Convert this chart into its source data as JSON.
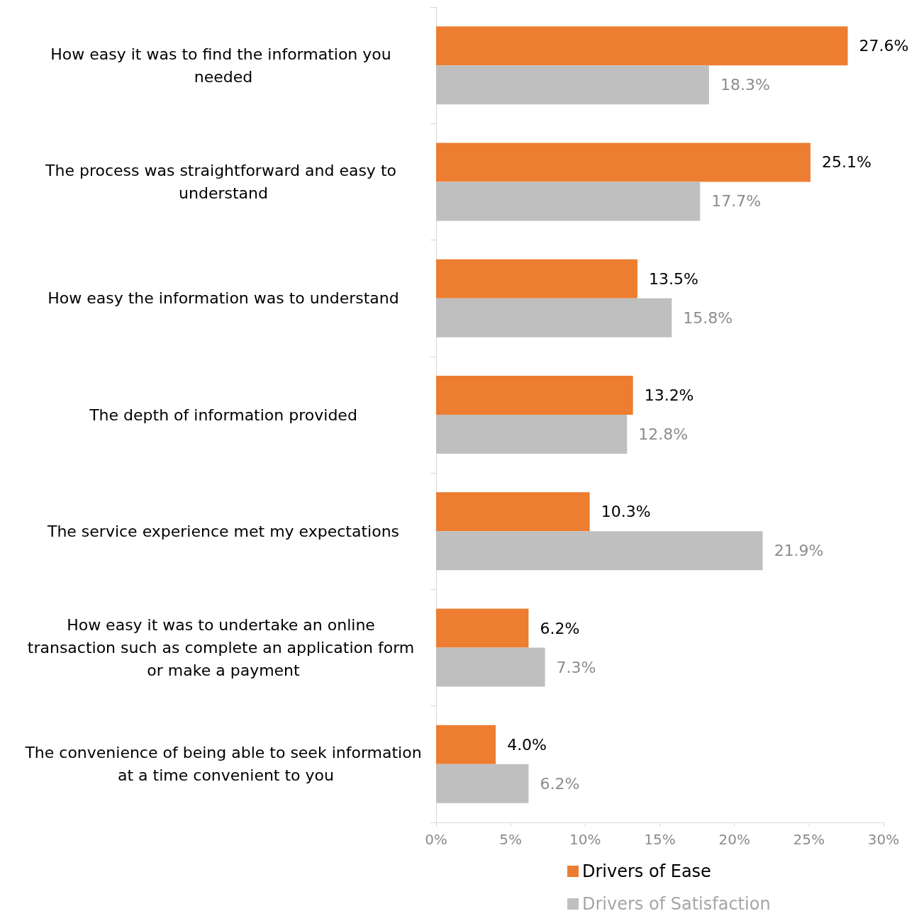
{
  "chart_data": {
    "type": "bar",
    "orientation": "horizontal",
    "categories": [
      "How easy it was to find the information you needed",
      "The process was straightforward and easy to understand",
      "How easy the information was to understand",
      "The depth of information provided",
      "The service experience met my expectations",
      "How easy it was to undertake an online transaction such as complete an application form or make a payment",
      "The convenience of being able to seek information at a time convenient to you"
    ],
    "series": [
      {
        "name": "Drivers of Ease",
        "color": "#ed7d31",
        "values": [
          27.6,
          25.1,
          13.5,
          13.2,
          10.3,
          6.2,
          4.0
        ],
        "value_labels": [
          "27.6%",
          "25.1%",
          "13.5%",
          "13.2%",
          "10.3%",
          "6.2%",
          "4.0%"
        ]
      },
      {
        "name": "Drivers of Satisfaction",
        "color": "#bfbfbf",
        "values": [
          18.3,
          17.7,
          15.8,
          12.8,
          21.9,
          7.3,
          6.2
        ],
        "value_labels": [
          "18.3%",
          "17.7%",
          "15.8%",
          "12.8%",
          "21.9%",
          "7.3%",
          "6.2%"
        ]
      }
    ],
    "xlim": [
      0,
      30
    ],
    "xticks": [
      {
        "value": 0,
        "label": "0%"
      },
      {
        "value": 5,
        "label": "5%"
      },
      {
        "value": 10,
        "label": "10%"
      },
      {
        "value": 15,
        "label": "15%"
      },
      {
        "value": 20,
        "label": "20%"
      },
      {
        "value": 25,
        "label": "25%"
      },
      {
        "value": 30,
        "label": "30%"
      }
    ],
    "grid": false,
    "legend": "bottom"
  }
}
